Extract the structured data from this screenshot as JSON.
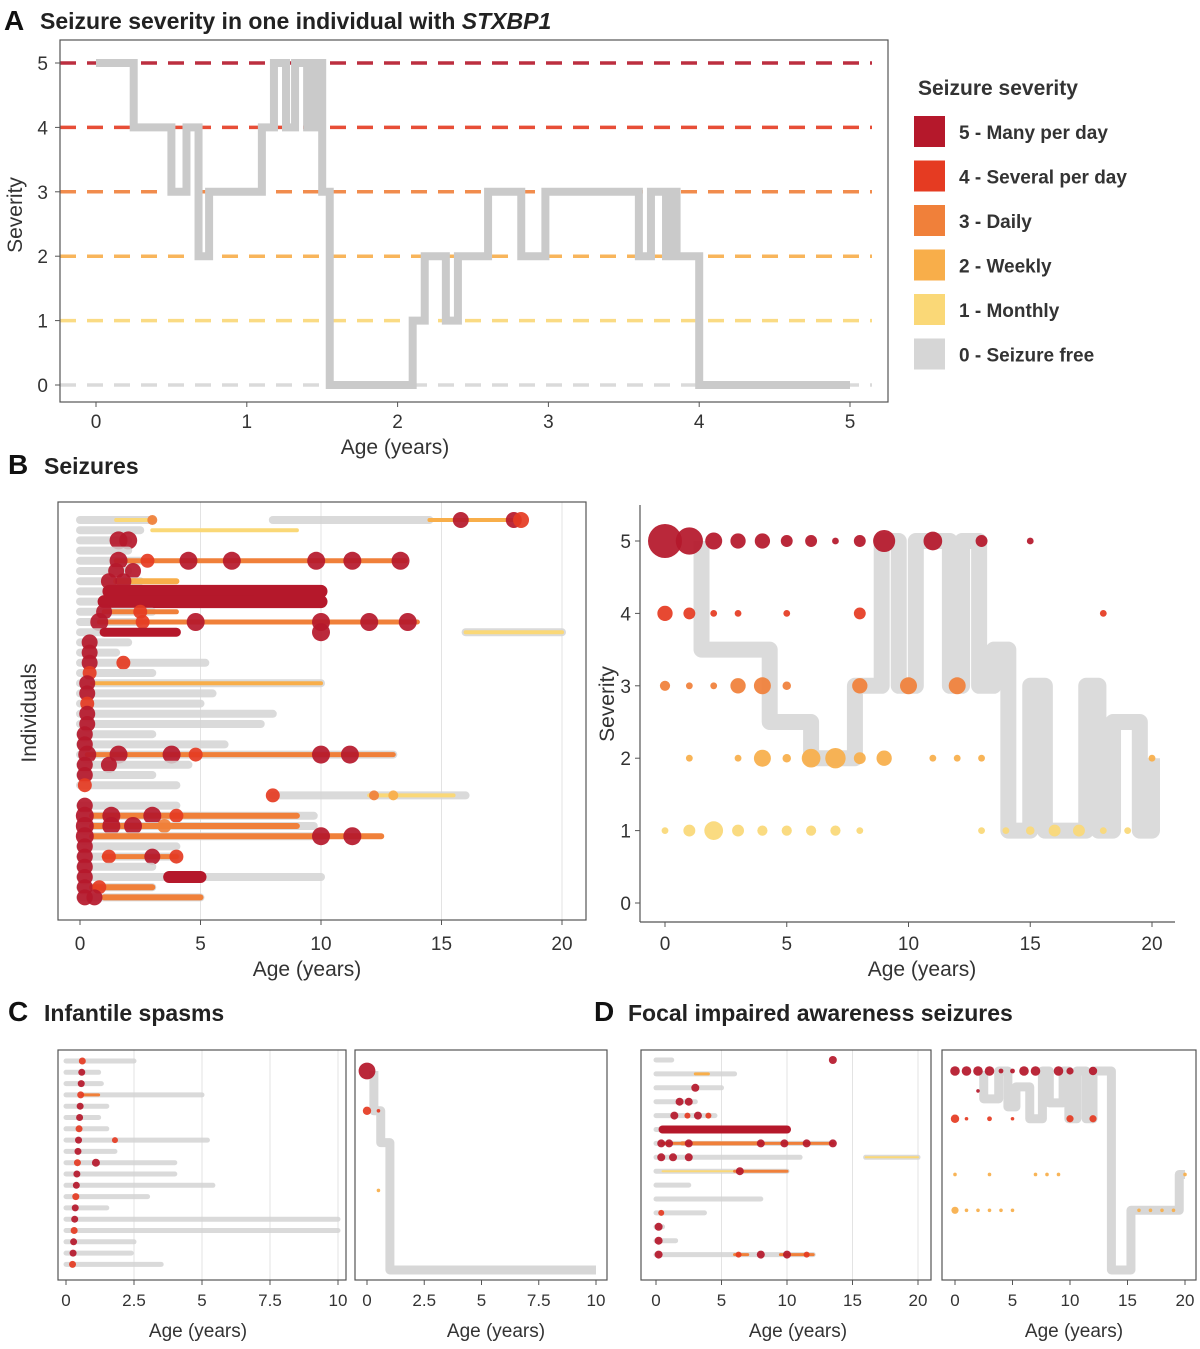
{
  "panel_a": {
    "letter": "A",
    "title_prefix": "Seizure severity in one individual with ",
    "title_gene": "STXBP1",
    "legend_title": "Seizure severity",
    "legend": [
      {
        "label": "5 - Many per day",
        "color": "#b5182b"
      },
      {
        "label": "4 - Several per day",
        "color": "#e53b22"
      },
      {
        "label": "3 - Daily",
        "color": "#f0803a"
      },
      {
        "label": "2 - Weekly",
        "color": "#f8ae4a"
      },
      {
        "label": "1 - Monthly",
        "color": "#fad877"
      },
      {
        "label": "0 - Seizure free",
        "color": "#d6d6d6"
      }
    ]
  },
  "panel_b": {
    "letter": "B",
    "title": "Seizures"
  },
  "panel_c": {
    "letter": "C",
    "title": "Infantile spasms"
  },
  "panel_d": {
    "letter": "D",
    "title": "Focal impaired awareness seizures"
  },
  "colors": {
    "sev5": "#b5182b",
    "sev4": "#e53b22",
    "sev3": "#f0803a",
    "sev2": "#f8ae4a",
    "sev1": "#fad877",
    "sev0": "#d6d6d6"
  },
  "chart_data": [
    {
      "id": "A",
      "type": "line",
      "title": "Seizure severity in one individual with STXBP1",
      "xlabel": "Age (years)",
      "ylabel": "Severity",
      "xlim": [
        0,
        5
      ],
      "ylim": [
        0,
        5
      ],
      "xticks": [
        "0",
        "1",
        "2",
        "3",
        "4",
        "5"
      ],
      "yticks": [
        "0",
        "1",
        "2",
        "3",
        "4",
        "5"
      ],
      "reference_lines": [
        0,
        1,
        2,
        3,
        4,
        5
      ],
      "step_points": [
        [
          0,
          5
        ],
        [
          0.25,
          5
        ],
        [
          0.25,
          4
        ],
        [
          0.5,
          4
        ],
        [
          0.5,
          3
        ],
        [
          0.6,
          3
        ],
        [
          0.6,
          4
        ],
        [
          0.68,
          4
        ],
        [
          0.68,
          2
        ],
        [
          0.75,
          2
        ],
        [
          0.75,
          3
        ],
        [
          1.1,
          3
        ],
        [
          1.1,
          4
        ],
        [
          1.18,
          4
        ],
        [
          1.18,
          5
        ],
        [
          1.26,
          5
        ],
        [
          1.26,
          4
        ],
        [
          1.32,
          4
        ],
        [
          1.32,
          5
        ],
        [
          1.4,
          5
        ],
        [
          1.4,
          4
        ],
        [
          1.45,
          4
        ],
        [
          1.45,
          5
        ],
        [
          1.5,
          5
        ],
        [
          1.5,
          3
        ],
        [
          1.55,
          3
        ],
        [
          1.55,
          0
        ],
        [
          2.1,
          0
        ],
        [
          2.1,
          1
        ],
        [
          2.18,
          1
        ],
        [
          2.18,
          2
        ],
        [
          2.32,
          2
        ],
        [
          2.32,
          1
        ],
        [
          2.4,
          1
        ],
        [
          2.4,
          2
        ],
        [
          2.6,
          2
        ],
        [
          2.6,
          3
        ],
        [
          2.82,
          3
        ],
        [
          2.82,
          2
        ],
        [
          2.98,
          2
        ],
        [
          2.98,
          3
        ],
        [
          3.6,
          3
        ],
        [
          3.6,
          2
        ],
        [
          3.68,
          2
        ],
        [
          3.68,
          3
        ],
        [
          3.78,
          3
        ],
        [
          3.78,
          2
        ],
        [
          3.82,
          2
        ],
        [
          3.82,
          3
        ],
        [
          3.85,
          3
        ],
        [
          3.85,
          2
        ],
        [
          4.0,
          2
        ],
        [
          4.0,
          0
        ],
        [
          5.0,
          0
        ]
      ]
    },
    {
      "id": "B-left",
      "type": "scatter",
      "xlabel": "Age (years)",
      "ylabel": "Individuals",
      "xlim": [
        0,
        20
      ],
      "xticks": [
        "0",
        "5",
        "10",
        "15",
        "20"
      ]
    },
    {
      "id": "B-right",
      "type": "scatter",
      "xlabel": "Age (years)",
      "ylabel": "Severity",
      "xlim": [
        0,
        20
      ],
      "ylim": [
        0,
        5
      ],
      "xticks": [
        "0",
        "5",
        "10",
        "15",
        "20"
      ],
      "yticks": [
        "0",
        "1",
        "2",
        "3",
        "4",
        "5"
      ],
      "points": [
        {
          "x": 0,
          "y": 5,
          "n": 20
        },
        {
          "x": 1,
          "y": 5,
          "n": 16
        },
        {
          "x": 2,
          "y": 5,
          "n": 10
        },
        {
          "x": 3,
          "y": 5,
          "n": 9
        },
        {
          "x": 4,
          "y": 5,
          "n": 9
        },
        {
          "x": 5,
          "y": 5,
          "n": 7
        },
        {
          "x": 6,
          "y": 5,
          "n": 7
        },
        {
          "x": 7,
          "y": 5,
          "n": 4
        },
        {
          "x": 8,
          "y": 5,
          "n": 7
        },
        {
          "x": 9,
          "y": 5,
          "n": 13
        },
        {
          "x": 11,
          "y": 5,
          "n": 11
        },
        {
          "x": 13,
          "y": 5,
          "n": 7
        },
        {
          "x": 15,
          "y": 5,
          "n": 4
        },
        {
          "x": 0,
          "y": 4,
          "n": 9
        },
        {
          "x": 1,
          "y": 4,
          "n": 7
        },
        {
          "x": 2,
          "y": 4,
          "n": 4
        },
        {
          "x": 3,
          "y": 4,
          "n": 4
        },
        {
          "x": 5,
          "y": 4,
          "n": 4
        },
        {
          "x": 8,
          "y": 4,
          "n": 7
        },
        {
          "x": 18,
          "y": 4,
          "n": 4
        },
        {
          "x": 0,
          "y": 3,
          "n": 6
        },
        {
          "x": 1,
          "y": 3,
          "n": 4
        },
        {
          "x": 2,
          "y": 3,
          "n": 4
        },
        {
          "x": 3,
          "y": 3,
          "n": 9
        },
        {
          "x": 4,
          "y": 3,
          "n": 10
        },
        {
          "x": 5,
          "y": 3,
          "n": 5
        },
        {
          "x": 8,
          "y": 3,
          "n": 9
        },
        {
          "x": 10,
          "y": 3,
          "n": 10
        },
        {
          "x": 12,
          "y": 3,
          "n": 10
        },
        {
          "x": 1,
          "y": 2,
          "n": 4
        },
        {
          "x": 3,
          "y": 2,
          "n": 4
        },
        {
          "x": 4,
          "y": 2,
          "n": 10
        },
        {
          "x": 5,
          "y": 2,
          "n": 5
        },
        {
          "x": 6,
          "y": 2,
          "n": 11
        },
        {
          "x": 7,
          "y": 2,
          "n": 12
        },
        {
          "x": 8,
          "y": 2,
          "n": 7
        },
        {
          "x": 9,
          "y": 2,
          "n": 9
        },
        {
          "x": 11,
          "y": 2,
          "n": 4
        },
        {
          "x": 12,
          "y": 2,
          "n": 4
        },
        {
          "x": 13,
          "y": 2,
          "n": 4
        },
        {
          "x": 20,
          "y": 2,
          "n": 4
        },
        {
          "x": 0,
          "y": 1,
          "n": 4
        },
        {
          "x": 1,
          "y": 1,
          "n": 7
        },
        {
          "x": 2,
          "y": 1,
          "n": 11
        },
        {
          "x": 3,
          "y": 1,
          "n": 7
        },
        {
          "x": 4,
          "y": 1,
          "n": 6
        },
        {
          "x": 5,
          "y": 1,
          "n": 6
        },
        {
          "x": 6,
          "y": 1,
          "n": 6
        },
        {
          "x": 7,
          "y": 1,
          "n": 6
        },
        {
          "x": 8,
          "y": 1,
          "n": 4
        },
        {
          "x": 13,
          "y": 1,
          "n": 4
        },
        {
          "x": 14,
          "y": 1,
          "n": 4
        },
        {
          "x": 15,
          "y": 1,
          "n": 5
        },
        {
          "x": 16,
          "y": 1,
          "n": 7
        },
        {
          "x": 17,
          "y": 1,
          "n": 7
        },
        {
          "x": 18,
          "y": 1,
          "n": 4
        },
        {
          "x": 19,
          "y": 1,
          "n": 4
        }
      ],
      "median_step_points": [
        [
          1.5,
          5
        ],
        [
          1.5,
          3.5
        ],
        [
          4.3,
          3.5
        ],
        [
          4.3,
          2.5
        ],
        [
          6.0,
          2.5
        ],
        [
          6.0,
          2.0
        ],
        [
          7.8,
          2.0
        ],
        [
          7.8,
          3.0
        ],
        [
          8.9,
          3.0
        ],
        [
          8.9,
          5.0
        ],
        [
          9.6,
          5.0
        ],
        [
          9.6,
          3.0
        ],
        [
          10.3,
          3.0
        ],
        [
          10.3,
          5.0
        ],
        [
          11.7,
          5.0
        ],
        [
          11.7,
          3.0
        ],
        [
          12.2,
          3.0
        ],
        [
          12.2,
          5.0
        ],
        [
          12.9,
          5.0
        ],
        [
          12.9,
          3.0
        ],
        [
          13.5,
          3.0
        ],
        [
          13.5,
          3.5
        ],
        [
          14.1,
          3.5
        ],
        [
          14.1,
          1.0
        ],
        [
          15.0,
          1.0
        ],
        [
          15.0,
          3.0
        ],
        [
          15.6,
          3.0
        ],
        [
          15.6,
          1.0
        ],
        [
          17.3,
          1.0
        ],
        [
          17.3,
          3.0
        ],
        [
          17.8,
          3.0
        ],
        [
          17.8,
          1.0
        ],
        [
          18.4,
          1.0
        ],
        [
          18.4,
          2.5
        ],
        [
          19.5,
          2.5
        ],
        [
          19.5,
          1.0
        ],
        [
          20.0,
          1.0
        ],
        [
          20.0,
          2.0
        ]
      ]
    },
    {
      "id": "C-left",
      "type": "scatter",
      "xlabel": "Age (years)",
      "xlim": [
        0,
        10
      ],
      "xticks": [
        "0",
        "2.5",
        "5",
        "7.5",
        "10"
      ]
    },
    {
      "id": "C-right",
      "type": "scatter",
      "xlabel": "Age (years)",
      "xlim": [
        0,
        10
      ],
      "ylim": [
        0,
        5
      ],
      "xticks": [
        "0",
        "2.5",
        "5",
        "7.5",
        "10"
      ],
      "points": [
        {
          "x": 0,
          "y": 5,
          "n": 14
        },
        {
          "x": 0,
          "y": 4,
          "n": 7
        },
        {
          "x": 0.5,
          "y": 4,
          "n": 3
        },
        {
          "x": 0.5,
          "y": 2,
          "n": 3
        }
      ],
      "median_step_points": [
        [
          0.3,
          5
        ],
        [
          0.3,
          4
        ],
        [
          0.6,
          4
        ],
        [
          0.6,
          3.2
        ],
        [
          1.0,
          3.2
        ],
        [
          1.0,
          0
        ],
        [
          10,
          0
        ]
      ]
    },
    {
      "id": "D-left",
      "type": "scatter",
      "xlabel": "Age (years)",
      "xlim": [
        0,
        20
      ],
      "xticks": [
        "0",
        "5",
        "10",
        "15",
        "20"
      ]
    },
    {
      "id": "D-right",
      "type": "scatter",
      "xlabel": "Age (years)",
      "xlim": [
        0,
        20
      ],
      "ylim": [
        0,
        5
      ],
      "xticks": [
        "0",
        "5",
        "10",
        "15",
        "20"
      ],
      "points": [
        {
          "x": 0,
          "y": 5,
          "n": 8
        },
        {
          "x": 1,
          "y": 5,
          "n": 8
        },
        {
          "x": 2,
          "y": 5,
          "n": 8
        },
        {
          "x": 3,
          "y": 5,
          "n": 8
        },
        {
          "x": 4,
          "y": 5,
          "n": 4
        },
        {
          "x": 5,
          "y": 5,
          "n": 4
        },
        {
          "x": 6,
          "y": 5,
          "n": 8
        },
        {
          "x": 7,
          "y": 5,
          "n": 8
        },
        {
          "x": 9,
          "y": 5,
          "n": 8
        },
        {
          "x": 10,
          "y": 5,
          "n": 6
        },
        {
          "x": 12,
          "y": 5,
          "n": 7
        },
        {
          "x": 2,
          "y": 4.5,
          "n": 3
        },
        {
          "x": 0,
          "y": 3.8,
          "n": 7
        },
        {
          "x": 1,
          "y": 3.8,
          "n": 3
        },
        {
          "x": 3,
          "y": 3.8,
          "n": 4
        },
        {
          "x": 5,
          "y": 3.8,
          "n": 3
        },
        {
          "x": 10,
          "y": 3.8,
          "n": 6
        },
        {
          "x": 12,
          "y": 3.8,
          "n": 6
        },
        {
          "x": 0,
          "y": 2.4,
          "n": 3
        },
        {
          "x": 3,
          "y": 2.4,
          "n": 3
        },
        {
          "x": 7,
          "y": 2.4,
          "n": 3
        },
        {
          "x": 8,
          "y": 2.4,
          "n": 3
        },
        {
          "x": 9,
          "y": 2.4,
          "n": 3
        },
        {
          "x": 20,
          "y": 2.4,
          "n": 3
        },
        {
          "x": 0,
          "y": 1.5,
          "n": 6
        },
        {
          "x": 1,
          "y": 1.5,
          "n": 3
        },
        {
          "x": 2,
          "y": 1.5,
          "n": 3
        },
        {
          "x": 3,
          "y": 1.5,
          "n": 3
        },
        {
          "x": 4,
          "y": 1.5,
          "n": 3
        },
        {
          "x": 5,
          "y": 1.5,
          "n": 3
        },
        {
          "x": 16,
          "y": 1.5,
          "n": 3
        },
        {
          "x": 17,
          "y": 1.5,
          "n": 3
        },
        {
          "x": 18,
          "y": 1.5,
          "n": 3
        },
        {
          "x": 19,
          "y": 1.5,
          "n": 3
        }
      ],
      "median_step_points": [
        [
          2.5,
          5
        ],
        [
          2.5,
          4.3
        ],
        [
          3.8,
          4.3
        ],
        [
          3.8,
          5
        ],
        [
          4.6,
          5
        ],
        [
          4.6,
          4.1
        ],
        [
          5.3,
          4.1
        ],
        [
          5.3,
          4.6
        ],
        [
          6.5,
          4.6
        ],
        [
          6.5,
          3.8
        ],
        [
          7.6,
          3.8
        ],
        [
          7.6,
          5
        ],
        [
          8.2,
          5
        ],
        [
          8.2,
          4.2
        ],
        [
          9.4,
          4.2
        ],
        [
          9.4,
          5
        ],
        [
          9.9,
          5
        ],
        [
          9.9,
          3.8
        ],
        [
          10.6,
          3.8
        ],
        [
          10.6,
          5
        ],
        [
          11.4,
          5
        ],
        [
          11.4,
          3.8
        ],
        [
          12.0,
          3.8
        ],
        [
          12.0,
          5
        ],
        [
          13.6,
          5
        ],
        [
          13.6,
          0
        ],
        [
          15.3,
          0
        ],
        [
          15.3,
          1.5
        ],
        [
          19.5,
          1.5
        ],
        [
          19.5,
          2.4
        ],
        [
          20,
          2.4
        ]
      ]
    }
  ]
}
